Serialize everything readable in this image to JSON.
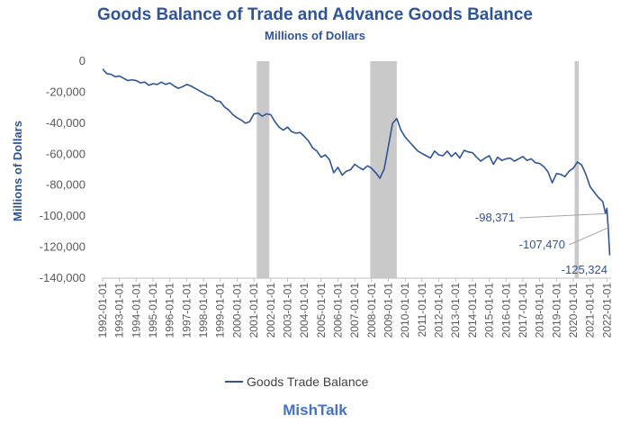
{
  "chart_data": {
    "type": "line",
    "title": "Goods Balance of Trade and Advance Goods Balance",
    "subtitle": "Millions of Dollars",
    "ylabel": "Millions of Dollars",
    "xlabel": "",
    "ylim": [
      -140000,
      0
    ],
    "yticks": [
      0,
      -20000,
      -40000,
      -60000,
      -80000,
      -100000,
      -120000,
      -140000
    ],
    "ytick_labels": [
      "0",
      "-20,000",
      "-40,000",
      "-60,000",
      "-80,000",
      "-100,000",
      "-120,000",
      "-140,000"
    ],
    "xlim": [
      1992.0,
      2022.25
    ],
    "xticks": [
      "1992-01-01",
      "1993-01-01",
      "1994-01-01",
      "1995-01-01",
      "1996-01-01",
      "1997-01-01",
      "1998-01-01",
      "1999-01-01",
      "2000-01-01",
      "2001-01-01",
      "2002-01-01",
      "2003-01-01",
      "2004-01-01",
      "2005-01-01",
      "2006-01-01",
      "2007-01-01",
      "2008-01-01",
      "2009-01-01",
      "2010-01-01",
      "2011-01-01",
      "2012-01-01",
      "2013-01-01",
      "2014-01-01",
      "2015-01-01",
      "2016-01-01",
      "2017-01-01",
      "2018-01-01",
      "2019-01-01",
      "2020-01-01",
      "2021-01-01",
      "2022-01-01"
    ],
    "recessions": [
      [
        2001.17,
        2001.92
      ],
      [
        2007.92,
        2009.5
      ],
      [
        2020.08,
        2020.33
      ]
    ],
    "legend": {
      "position": "bottom",
      "entries": [
        "Goods Trade Balance"
      ]
    },
    "series": [
      {
        "name": "Goods Trade Balance",
        "color": "#2f5597",
        "x": [
          1992.0,
          1992.25,
          1992.5,
          1992.75,
          1993.0,
          1993.25,
          1993.5,
          1993.75,
          1994.0,
          1994.25,
          1994.5,
          1994.75,
          1995.0,
          1995.25,
          1995.5,
          1995.75,
          1996.0,
          1996.25,
          1996.5,
          1996.75,
          1997.0,
          1997.25,
          1997.5,
          1997.75,
          1998.0,
          1998.25,
          1998.5,
          1998.75,
          1999.0,
          1999.25,
          1999.5,
          1999.75,
          2000.0,
          2000.25,
          2000.5,
          2000.75,
          2001.0,
          2001.25,
          2001.5,
          2001.75,
          2002.0,
          2002.25,
          2002.5,
          2002.75,
          2003.0,
          2003.25,
          2003.5,
          2003.75,
          2004.0,
          2004.25,
          2004.5,
          2004.75,
          2005.0,
          2005.25,
          2005.5,
          2005.75,
          2006.0,
          2006.25,
          2006.5,
          2006.75,
          2007.0,
          2007.25,
          2007.5,
          2007.75,
          2008.0,
          2008.25,
          2008.5,
          2008.75,
          2009.0,
          2009.25,
          2009.5,
          2009.75,
          2010.0,
          2010.25,
          2010.5,
          2010.75,
          2011.0,
          2011.25,
          2011.5,
          2011.75,
          2012.0,
          2012.25,
          2012.5,
          2012.75,
          2013.0,
          2013.25,
          2013.5,
          2013.75,
          2014.0,
          2014.25,
          2014.5,
          2014.75,
          2015.0,
          2015.25,
          2015.5,
          2015.75,
          2016.0,
          2016.25,
          2016.5,
          2016.75,
          2017.0,
          2017.25,
          2017.5,
          2017.75,
          2018.0,
          2018.25,
          2018.5,
          2018.75,
          2019.0,
          2019.25,
          2019.5,
          2019.75,
          2020.0,
          2020.25,
          2020.5,
          2020.75,
          2021.0,
          2021.25,
          2021.5,
          2021.75,
          2021.92,
          2022.0,
          2022.08,
          2022.17
        ],
        "values": [
          -5000,
          -8000,
          -8500,
          -10000,
          -9500,
          -11000,
          -12500,
          -12000,
          -12500,
          -14000,
          -13500,
          -15500,
          -14500,
          -15000,
          -13500,
          -15000,
          -14000,
          -16000,
          -17500,
          -16500,
          -15000,
          -16000,
          -17500,
          -19000,
          -20500,
          -22000,
          -23000,
          -25500,
          -26000,
          -29500,
          -31500,
          -34500,
          -36500,
          -38000,
          -40000,
          -39000,
          -34000,
          -33500,
          -35500,
          -34000,
          -34500,
          -39000,
          -42500,
          -44500,
          -42500,
          -45500,
          -46500,
          -46000,
          -48500,
          -51500,
          -56000,
          -58000,
          -62000,
          -60500,
          -63500,
          -72000,
          -68500,
          -73500,
          -71000,
          -70000,
          -66500,
          -68500,
          -70000,
          -67500,
          -69000,
          -72000,
          -75500,
          -69500,
          -55000,
          -40000,
          -37000,
          -44500,
          -49000,
          -52000,
          -55000,
          -58000,
          -59500,
          -61000,
          -62500,
          -58000,
          -60500,
          -61000,
          -58000,
          -61500,
          -59000,
          -62500,
          -57500,
          -58500,
          -59000,
          -62000,
          -64500,
          -62500,
          -61000,
          -66500,
          -62000,
          -64000,
          -63000,
          -62500,
          -64500,
          -63000,
          -61500,
          -64000,
          -63000,
          -65500,
          -66000,
          -68000,
          -71500,
          -78500,
          -72500,
          -73000,
          -74500,
          -71000,
          -69000,
          -65000,
          -67000,
          -73000,
          -81000,
          -84500,
          -88000,
          -90500,
          -98371,
          -95000,
          -107470,
          -125324
        ]
      }
    ],
    "data_labels": [
      {
        "text": "-98,371",
        "x": 2021.92,
        "value": -98371
      },
      {
        "text": "-107,470",
        "x": 2022.08,
        "value": -107470
      },
      {
        "text": "-125,324",
        "x": 2022.17,
        "value": -125324
      }
    ]
  },
  "footer": "MishTalk"
}
